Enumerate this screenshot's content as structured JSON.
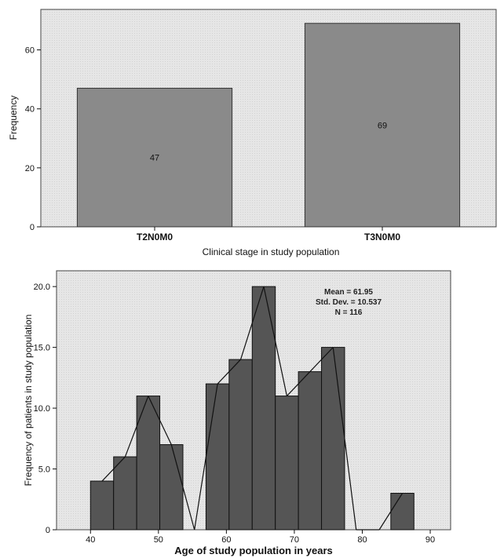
{
  "chart_data": [
    {
      "type": "bar",
      "categories": [
        "T2N0M0",
        "T3N0M0"
      ],
      "values": [
        47,
        69
      ],
      "data_labels": [
        "47",
        "69"
      ],
      "xlabel": "Clinical stage in study population",
      "ylabel": "Frequency",
      "ylim": [
        0,
        70
      ],
      "yticks": [
        0,
        20,
        40,
        60
      ],
      "ytick_labels": [
        "0",
        "20",
        "40",
        "60"
      ],
      "grid": false,
      "colors": {
        "background": "#e8e8e8",
        "bar": "#8a8a8a",
        "bar_edge": "#333333"
      }
    },
    {
      "type": "bar",
      "subtype": "histogram",
      "bins": [
        {
          "x0": 40,
          "x1": 43.4,
          "count": 4
        },
        {
          "x0": 43.4,
          "x1": 46.8,
          "count": 6
        },
        {
          "x0": 46.8,
          "x1": 50.2,
          "count": 11
        },
        {
          "x0": 50.2,
          "x1": 53.6,
          "count": 7
        },
        {
          "x0": 53.6,
          "x1": 57.0,
          "count": 0
        },
        {
          "x0": 57.0,
          "x1": 60.4,
          "count": 12
        },
        {
          "x0": 60.4,
          "x1": 63.8,
          "count": 14
        },
        {
          "x0": 63.8,
          "x1": 67.2,
          "count": 20
        },
        {
          "x0": 67.2,
          "x1": 70.6,
          "count": 11
        },
        {
          "x0": 70.6,
          "x1": 74.0,
          "count": 13
        },
        {
          "x0": 74.0,
          "x1": 77.4,
          "count": 15
        },
        {
          "x0": 77.4,
          "x1": 80.8,
          "count": 0
        },
        {
          "x0": 80.8,
          "x1": 84.2,
          "count": 0
        },
        {
          "x0": 84.2,
          "x1": 87.6,
          "count": 3
        }
      ],
      "xlabel": "Age of study population in years",
      "ylabel": "Frequency of patients in study population",
      "xlim": [
        35,
        93
      ],
      "ylim": [
        0,
        21.3
      ],
      "xticks": [
        40,
        50,
        60,
        70,
        80,
        90
      ],
      "xtick_labels": [
        "40",
        "50",
        "60",
        "70",
        "80",
        "90"
      ],
      "yticks": [
        0,
        5,
        10,
        15,
        20
      ],
      "ytick_labels": [
        "0",
        "5.0",
        "10.0",
        "15.0",
        "20.0"
      ],
      "stats": [
        "Mean = 61.95",
        "Std. Dev. = 10.537",
        "N = 116"
      ],
      "frequency_polygon": true,
      "grid": false,
      "colors": {
        "background": "#e8e8e8",
        "bar": "#555555",
        "bar_edge": "#111111",
        "line": "#111111"
      }
    }
  ]
}
